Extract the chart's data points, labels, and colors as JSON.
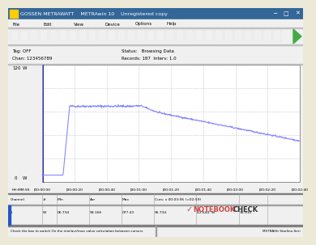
{
  "title": "GOSSEN METRAWATT    METRAwin 10    Unregistered copy",
  "tag_off": "Tag: OFF",
  "chan": "Chan: 123456789",
  "status": "Status:   Browsing Data",
  "records": "Records: 187  Interv: 1.0",
  "x_ticks": [
    "00:00:00",
    "00:00:20",
    "00:00:40",
    "00:01:00",
    "00:01:20",
    "00:01:40",
    "00:02:00",
    "00:02:20",
    "00:02:40"
  ],
  "x_label": "HH:MM:SS",
  "line_color": "#8888ff",
  "grid_color": "#c0c0c0",
  "bottom_left": "Check the box to switch On the min/avr/max value calculation between cursors",
  "bottom_right": "METRAHit Starline-Seri",
  "table_headers": [
    "Channel",
    "#",
    "Min",
    "Avr",
    "Max",
    "Curs: x 00:03:06 (=02:59)",
    "",
    ""
  ],
  "table_row": [
    "1",
    "W",
    "06.734",
    "58.166",
    "077.43",
    "06.734",
    "42.644  W",
    "35.910"
  ],
  "ymin": 0,
  "ymax": 120,
  "xmin": 0,
  "xmax": 160,
  "win_bg": "#f0f0f0",
  "plot_bg": "#ffffff",
  "titlebar_bg": "#336699",
  "toolbar_bg": "#f0f0f0"
}
